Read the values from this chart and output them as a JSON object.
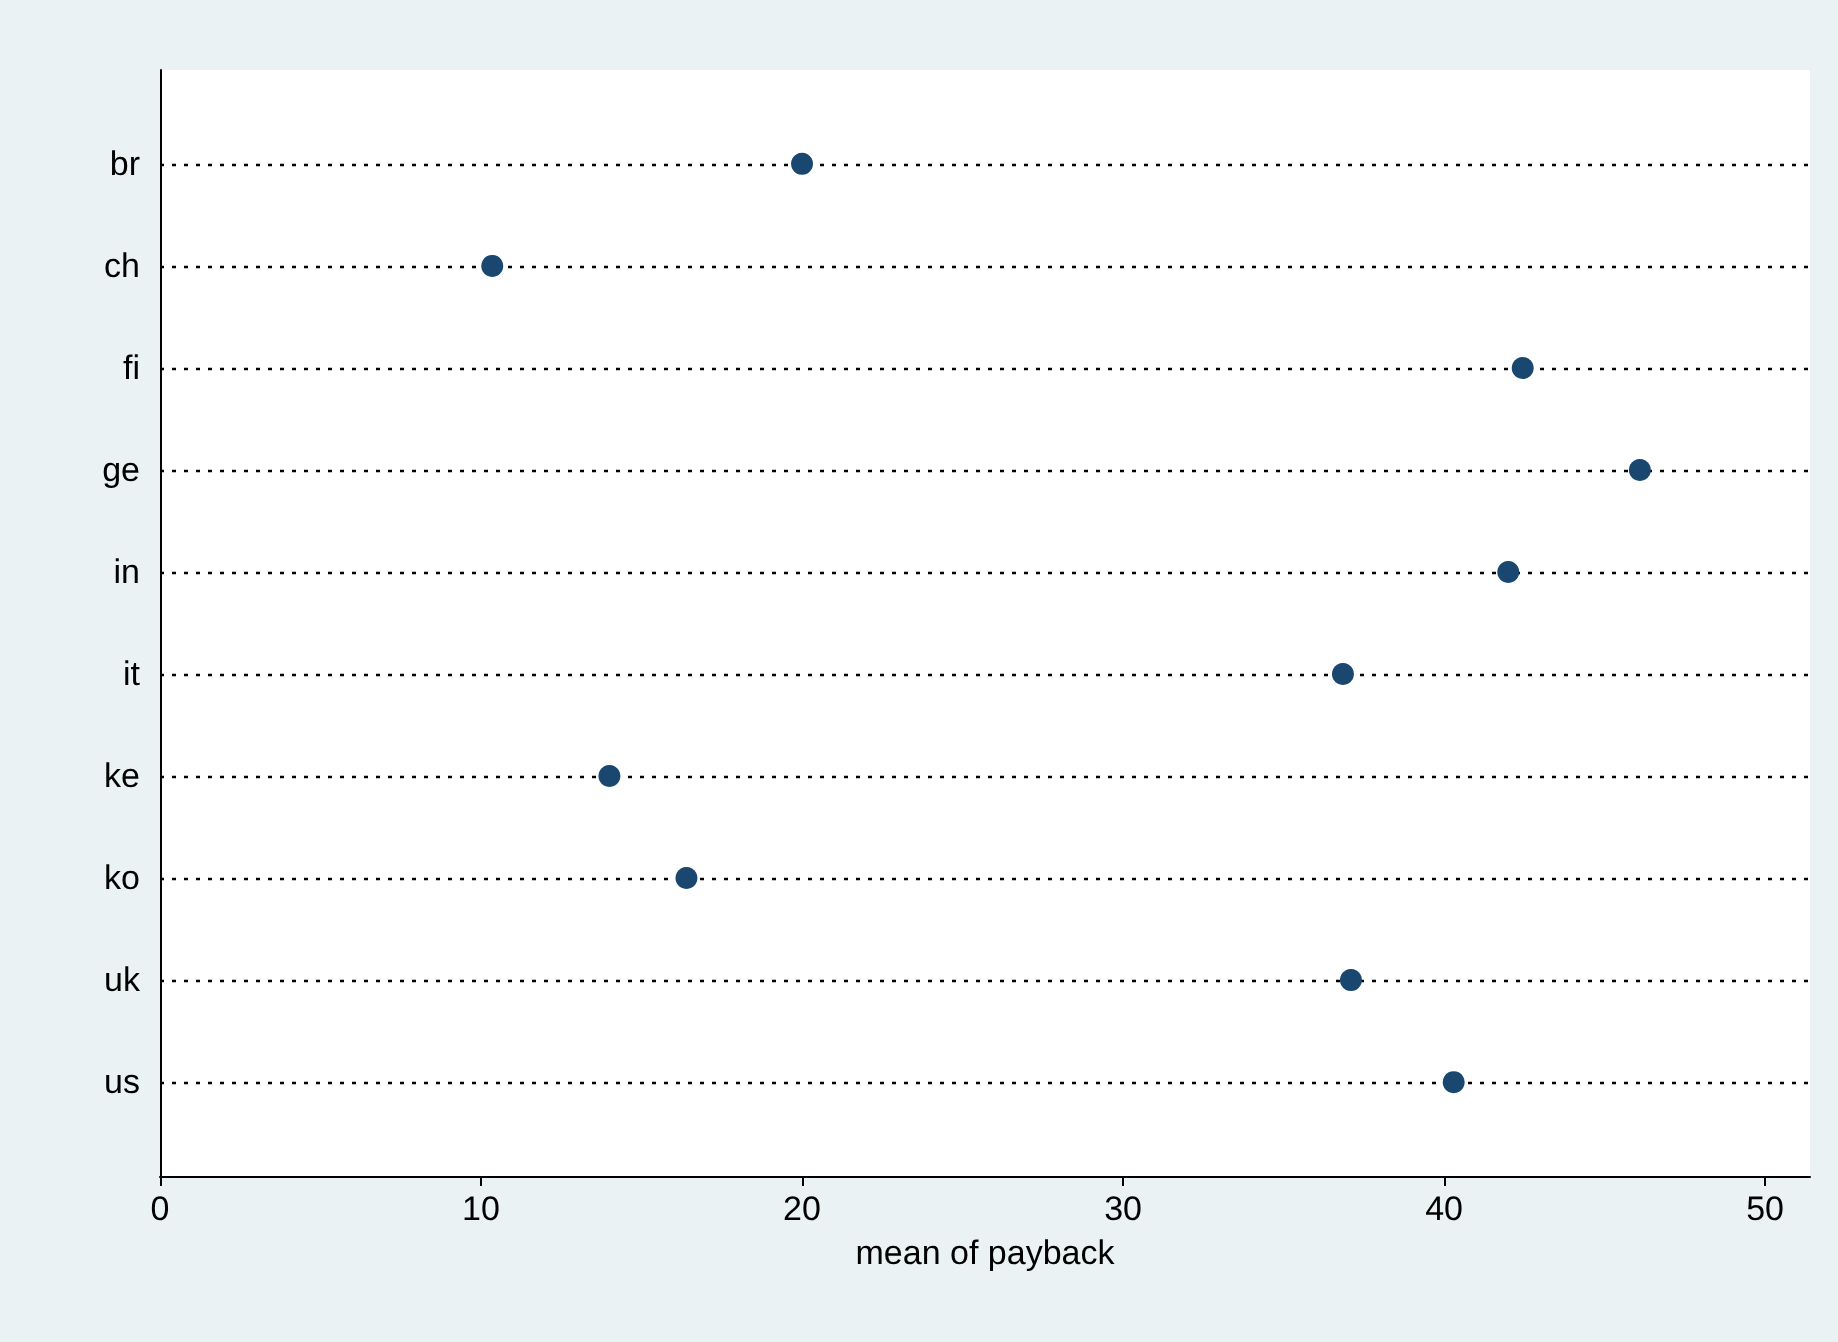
{
  "chart_data": {
    "type": "scatter",
    "orientation": "horizontal",
    "xlabel": "mean of payback",
    "categories": [
      "br",
      "ch",
      "fi",
      "ge",
      "in",
      "it",
      "ke",
      "ko",
      "uk",
      "us"
    ],
    "series": [
      {
        "color": "#1a476f",
        "values": [
          20.0,
          10.35,
          42.45,
          46.1,
          42.0,
          36.85,
          14.0,
          16.4,
          37.1,
          40.3
        ]
      }
    ],
    "xlim": [
      0,
      51.4
    ],
    "xticks": [
      0,
      10,
      20,
      30,
      40,
      50
    ],
    "grid": "y",
    "marker": "circle"
  }
}
